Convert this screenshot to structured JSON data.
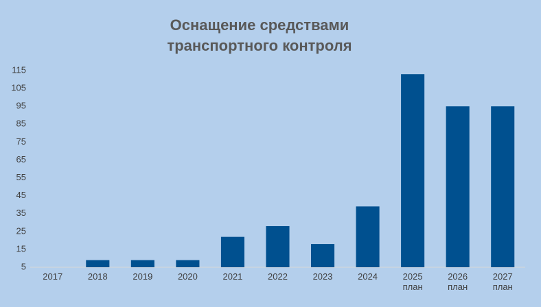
{
  "chart_data": {
    "type": "bar",
    "title": "Оснащение  средствами\nтранспортного контроля",
    "categories": [
      "2017",
      "2018",
      "2019",
      "2020",
      "2021",
      "2022",
      "2023",
      "2024",
      "2025\nплан",
      "2026\nплан",
      "2027\nплан"
    ],
    "values": [
      5,
      9,
      9,
      9,
      22,
      28,
      18,
      39,
      113,
      95,
      95
    ],
    "color": "#00508f",
    "ylim": [
      5,
      115
    ],
    "yticks": [
      5,
      15,
      25,
      35,
      45,
      55,
      65,
      75,
      85,
      95,
      105,
      115
    ],
    "grid": false
  }
}
